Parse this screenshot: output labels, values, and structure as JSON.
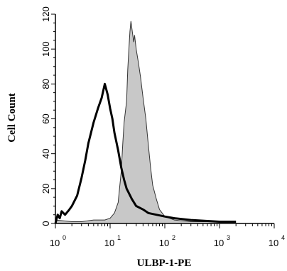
{
  "chart_data": {
    "type": "area",
    "xlabel": "ULBP-1-PE",
    "ylabel": "Cell Count",
    "xscale": "log",
    "xlim": [
      1,
      10000
    ],
    "ylim": [
      0,
      120
    ],
    "x_ticks": [
      {
        "base": "10",
        "exp": "0",
        "value": 1
      },
      {
        "base": "10",
        "exp": "1",
        "value": 10
      },
      {
        "base": "10",
        "exp": "2",
        "value": 100
      },
      {
        "base": "10",
        "exp": "3",
        "value": 1000
      },
      {
        "base": "10",
        "exp": "4",
        "value": 10000
      }
    ],
    "y_ticks": [
      "0",
      "20",
      "40",
      "60",
      "80",
      "100",
      "120"
    ],
    "grid": false,
    "series": [
      {
        "style": "filled-gray",
        "fill": "#c8c8c8",
        "stroke": "#333333",
        "points": [
          [
            1,
            2
          ],
          [
            2,
            1
          ],
          [
            3,
            1
          ],
          [
            5,
            2
          ],
          [
            8,
            2
          ],
          [
            10,
            3
          ],
          [
            12,
            6
          ],
          [
            14,
            12
          ],
          [
            16,
            30
          ],
          [
            17,
            45
          ],
          [
            18,
            58
          ],
          [
            20,
            70
          ],
          [
            21,
            88
          ],
          [
            22,
            100
          ],
          [
            23,
            110
          ],
          [
            24,
            116
          ],
          [
            25,
            112
          ],
          [
            27,
            104
          ],
          [
            28,
            108
          ],
          [
            30,
            100
          ],
          [
            33,
            92
          ],
          [
            36,
            84
          ],
          [
            40,
            72
          ],
          [
            45,
            60
          ],
          [
            50,
            45
          ],
          [
            55,
            32
          ],
          [
            60,
            22
          ],
          [
            70,
            14
          ],
          [
            80,
            8
          ],
          [
            100,
            4
          ],
          [
            150,
            2
          ],
          [
            300,
            1
          ],
          [
            1000,
            1
          ]
        ]
      },
      {
        "style": "black-outline",
        "stroke": "#000000",
        "points": [
          [
            1,
            0
          ],
          [
            1.1,
            5
          ],
          [
            1.2,
            3
          ],
          [
            1.3,
            7
          ],
          [
            1.5,
            5
          ],
          [
            1.8,
            8
          ],
          [
            2,
            10
          ],
          [
            2.5,
            16
          ],
          [
            3,
            26
          ],
          [
            3.5,
            36
          ],
          [
            4,
            46
          ],
          [
            5,
            58
          ],
          [
            6,
            66
          ],
          [
            7,
            72
          ],
          [
            8,
            80
          ],
          [
            9,
            74
          ],
          [
            10,
            66
          ],
          [
            11,
            60
          ],
          [
            12,
            52
          ],
          [
            14,
            42
          ],
          [
            16,
            32
          ],
          [
            18,
            25
          ],
          [
            20,
            20
          ],
          [
            25,
            14
          ],
          [
            30,
            10
          ],
          [
            40,
            8
          ],
          [
            50,
            6
          ],
          [
            70,
            5
          ],
          [
            100,
            4
          ],
          [
            150,
            3
          ],
          [
            300,
            2
          ],
          [
            1000,
            1
          ],
          [
            2000,
            1
          ]
        ]
      }
    ]
  }
}
